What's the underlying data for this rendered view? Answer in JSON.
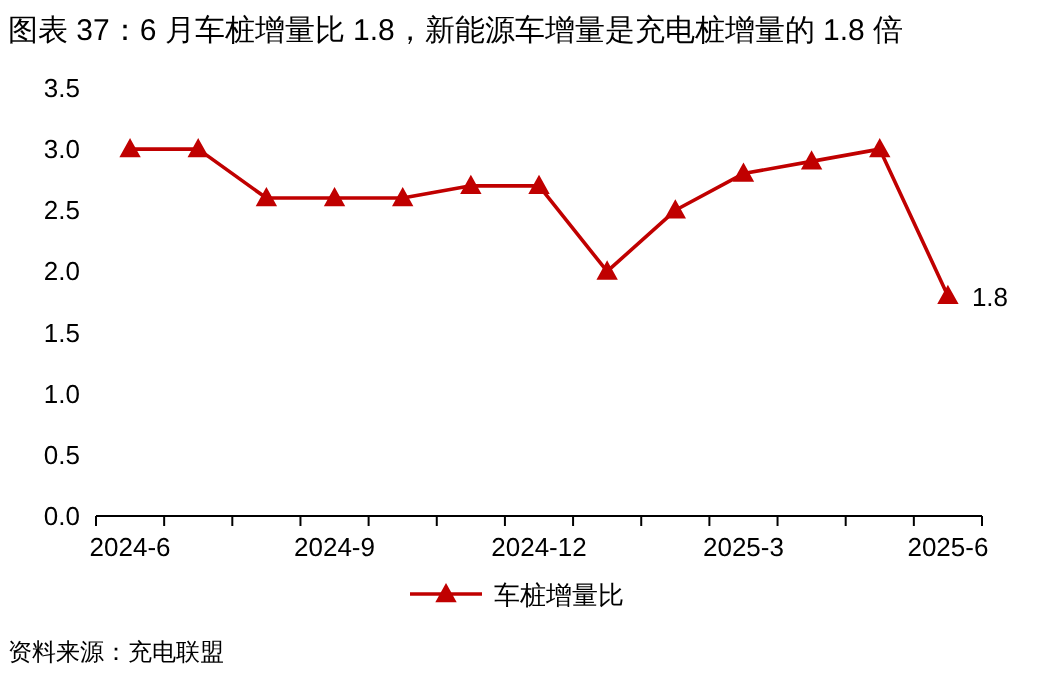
{
  "chart_data": {
    "type": "line",
    "title": "图表 37：6 月车桩增量比 1.8，新能源车增量是充电桩增量的 1.8 倍",
    "categories": [
      "2024-6",
      null,
      null,
      "2024-9",
      null,
      null,
      "2024-12",
      null,
      null,
      "2025-3",
      null,
      null,
      "2025-6"
    ],
    "series": [
      {
        "name": "车桩增量比",
        "color": "#c00000",
        "values": [
          3.0,
          3.0,
          2.6,
          2.6,
          2.6,
          2.7,
          2.7,
          2.0,
          2.5,
          2.8,
          2.9,
          3.0,
          1.8
        ],
        "value_labels": [
          null,
          null,
          null,
          null,
          null,
          null,
          null,
          null,
          null,
          null,
          null,
          null,
          "1.8"
        ]
      }
    ],
    "ylim": [
      0,
      3.5
    ],
    "yticks": [
      {
        "value": 0,
        "label": "0.0"
      },
      0.5,
      {
        "value": 1,
        "label": "1.0"
      },
      1.5,
      {
        "value": 2,
        "label": "2.0"
      },
      2.5,
      {
        "value": 3,
        "label": "3.0"
      },
      3.5
    ],
    "marker": "triangle",
    "legend": "bottom",
    "grid": false,
    "annotations": [
      "资料来源：充电联盟"
    ]
  }
}
